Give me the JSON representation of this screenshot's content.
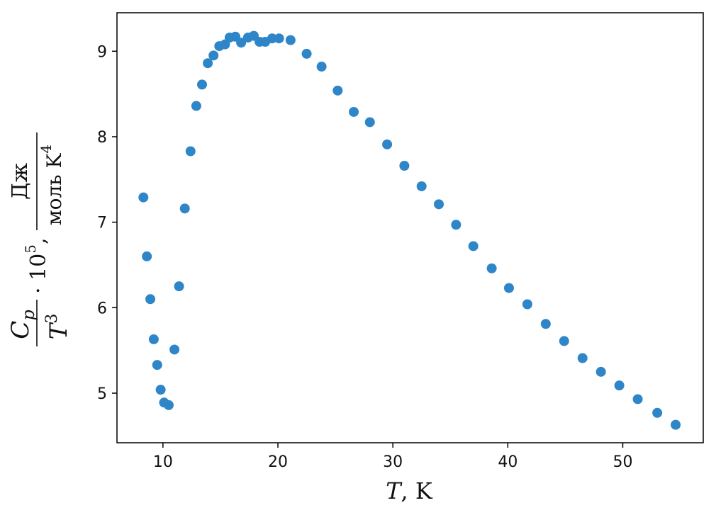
{
  "chart_data": {
    "type": "scatter",
    "xlabel": {
      "var": "T",
      "rest": ", K"
    },
    "ylabel": {
      "numerator": "C",
      "numerator_sub": "p",
      "denominator": "T",
      "denominator_sup": "3",
      "factor": "· 10",
      "factor_sup": "5",
      "sep": ",",
      "unit_numerator": "Дж",
      "unit_denominator": "моль K",
      "unit_denominator_sup": "4"
    },
    "xlim": [
      6,
      57
    ],
    "ylim": [
      4.42,
      9.45
    ],
    "xticks": [
      10,
      20,
      30,
      40,
      50
    ],
    "yticks": [
      5,
      6,
      7,
      8,
      9
    ],
    "grid": false,
    "marker_color": "#2e86c8",
    "points": [
      [
        8.3,
        7.29
      ],
      [
        8.6,
        6.6
      ],
      [
        8.9,
        6.1
      ],
      [
        9.2,
        5.63
      ],
      [
        9.5,
        5.33
      ],
      [
        9.8,
        5.04
      ],
      [
        10.1,
        4.89
      ],
      [
        10.5,
        4.86
      ],
      [
        11.0,
        5.51
      ],
      [
        11.4,
        6.25
      ],
      [
        11.9,
        7.16
      ],
      [
        12.4,
        7.83
      ],
      [
        12.9,
        8.36
      ],
      [
        13.4,
        8.61
      ],
      [
        13.9,
        8.86
      ],
      [
        14.4,
        8.95
      ],
      [
        14.9,
        9.06
      ],
      [
        15.4,
        9.08
      ],
      [
        15.8,
        9.16
      ],
      [
        16.3,
        9.17
      ],
      [
        16.8,
        9.1
      ],
      [
        17.4,
        9.16
      ],
      [
        17.9,
        9.18
      ],
      [
        18.4,
        9.11
      ],
      [
        18.9,
        9.11
      ],
      [
        19.5,
        9.15
      ],
      [
        20.1,
        9.15
      ],
      [
        21.1,
        9.13
      ],
      [
        22.5,
        8.97
      ],
      [
        23.8,
        8.82
      ],
      [
        25.2,
        8.54
      ],
      [
        26.6,
        8.29
      ],
      [
        28.0,
        8.17
      ],
      [
        29.5,
        7.91
      ],
      [
        31.0,
        7.66
      ],
      [
        32.5,
        7.42
      ],
      [
        34.0,
        7.21
      ],
      [
        35.5,
        6.97
      ],
      [
        37.0,
        6.72
      ],
      [
        38.6,
        6.46
      ],
      [
        40.1,
        6.23
      ],
      [
        41.7,
        6.04
      ],
      [
        43.3,
        5.81
      ],
      [
        44.9,
        5.61
      ],
      [
        46.5,
        5.41
      ],
      [
        48.1,
        5.25
      ],
      [
        49.7,
        5.09
      ],
      [
        51.3,
        4.93
      ],
      [
        53.0,
        4.77
      ],
      [
        54.6,
        4.63
      ]
    ]
  }
}
